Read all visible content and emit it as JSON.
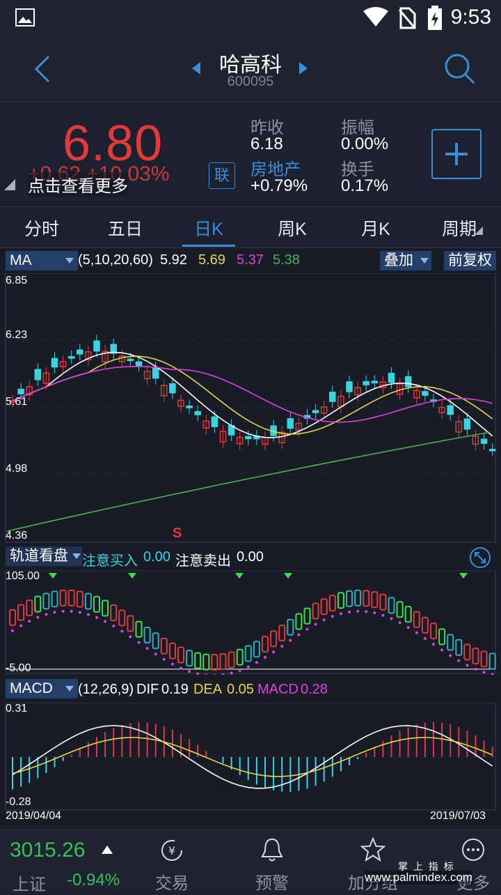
{
  "status_bar": {
    "time": "9:53"
  },
  "header": {
    "title": "哈高科",
    "code": "600095"
  },
  "quote": {
    "price": "6.80",
    "change_partial": "+0.62 +10.03%",
    "tip": "点击查看更多",
    "lian": "联",
    "stats": [
      {
        "label": "昨收",
        "value": "6.18"
      },
      {
        "label": "振幅",
        "value": "0.00%"
      },
      {
        "label": "房地产",
        "value": "+0.79%"
      },
      {
        "label": "换手",
        "value": "0.17%"
      }
    ]
  },
  "tabs": [
    "分时",
    "五日",
    "日K",
    "周K",
    "月K",
    "周期"
  ],
  "ma_bar": {
    "selector": "MA",
    "params": "(5,10,20,60)",
    "values": [
      "5.92",
      "5.69",
      "5.37",
      "5.38"
    ],
    "overlay": "叠加",
    "adjust": "前复权"
  },
  "price_axis": [
    "6.85",
    "6.23",
    "5.61",
    "4.98",
    "4.36"
  ],
  "marker_s": "S",
  "track_bar": {
    "selector": "轨道看盘",
    "buy_label": "注意买入",
    "buy_value": "0.00",
    "sell_label": "注意卖出",
    "sell_value": "0.00",
    "axis_top": "105.00",
    "axis_bottom": "-5.00"
  },
  "macd_bar": {
    "selector": "MACD",
    "params": "(12,26,9)",
    "dif_label": "DIF",
    "dif_value": "0.19",
    "dea_label": "DEA",
    "dea_value": "0.05",
    "macd_label": "MACD",
    "macd_value": "0.28",
    "axis_top": "0.31",
    "axis_bottom": "-0.28"
  },
  "date_range": {
    "start": "2019/04/04",
    "end": "2019/07/03"
  },
  "bottom": {
    "index_value": "3015.26",
    "index_name": "上证",
    "index_change": "-0.94%",
    "nav": [
      "交易",
      "预警",
      "加分组",
      "更多"
    ],
    "watermark_cn": "掌 上 指 标",
    "watermark_url": "www.palmindex.com"
  },
  "colors": {
    "up": "#e03a3a",
    "down": "#39d4e0",
    "accent": "#3a8ed8",
    "ma5": "#ffffff",
    "ma10": "#e6d84a",
    "ma20": "#e040e0",
    "ma60": "#4caf50"
  }
}
